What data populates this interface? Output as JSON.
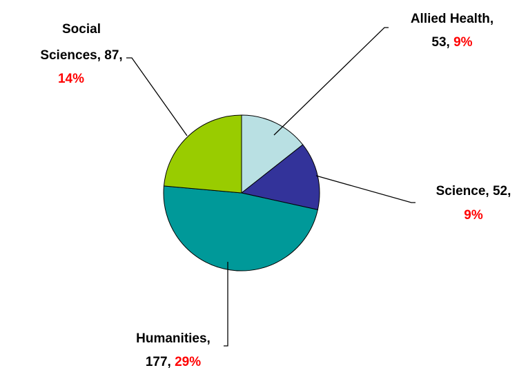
{
  "chart_data": {
    "type": "pie",
    "title": "",
    "slices": [
      {
        "name": "Allied Health",
        "value": 53,
        "percent": "9%",
        "color": "#b9e0e3"
      },
      {
        "name": "Science",
        "value": 52,
        "percent": "9%",
        "color": "#33339a"
      },
      {
        "name": "Humanities",
        "value": 177,
        "percent": "29%",
        "color": "#009999"
      },
      {
        "name": "Social Sciences",
        "value": 87,
        "percent": "14%",
        "color": "#99cc00"
      }
    ],
    "labels": {
      "allied": {
        "line1": "Allied Health,",
        "line2_value": "53,",
        "line2_pct": "9%"
      },
      "science": {
        "line1": "Science, 52,",
        "line2_pct": "9%"
      },
      "humanities": {
        "line1": "Humanities,",
        "line2_value": "177,",
        "line2_pct": "29%"
      },
      "social": {
        "line1": "Social",
        "line2": "Sciences, 87,",
        "line3_pct": "14%"
      }
    },
    "legend": "none"
  }
}
